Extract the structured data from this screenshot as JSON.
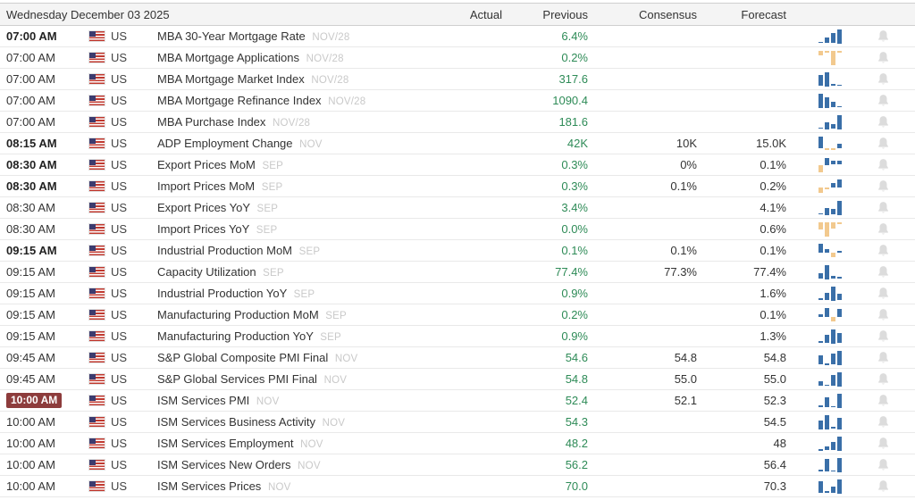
{
  "header": {
    "date": "Wednesday December 03 2025",
    "columns": {
      "actual": "Actual",
      "previous": "Previous",
      "consensus": "Consensus",
      "forecast": "Forecast"
    }
  },
  "colors": {
    "value_green": "#2e8b57",
    "spark_positive_blue": "#3a6fa8",
    "spark_negative_orange": "#f2c98e",
    "time_badge_red": "#8d3c3c",
    "header_bg": "#f4f4f4"
  },
  "icons": {
    "bell": "alert-bell-icon",
    "spark": "mini-bar-chart-icon",
    "flag": "us-flag-icon"
  },
  "rows": [
    {
      "time": "07:00 AM",
      "time_bold": true,
      "time_badge": false,
      "country": "US",
      "event": "MBA 30-Year Mortgage Rate",
      "period": "NOV/28",
      "actual": "",
      "previous": "6.4%",
      "consensus": "",
      "forecast": "",
      "spark": [
        0.12,
        0.4,
        0.7,
        1
      ]
    },
    {
      "time": "07:00 AM",
      "time_bold": false,
      "time_badge": false,
      "country": "US",
      "event": "MBA Mortgage Applications",
      "period": "NOV/28",
      "actual": "",
      "previous": "0.2%",
      "consensus": "",
      "forecast": "",
      "spark": [
        -0.35,
        -0.15,
        -1,
        -0.18
      ]
    },
    {
      "time": "07:00 AM",
      "time_bold": false,
      "time_badge": false,
      "country": "US",
      "event": "MBA Mortgage Market Index",
      "period": "NOV/28",
      "actual": "",
      "previous": "317.6",
      "consensus": "",
      "forecast": "",
      "spark": [
        0.8,
        1,
        0.15,
        0.1
      ]
    },
    {
      "time": "07:00 AM",
      "time_bold": false,
      "time_badge": false,
      "country": "US",
      "event": "MBA Mortgage Refinance Index",
      "period": "NOV/28",
      "actual": "",
      "previous": "1090.4",
      "consensus": "",
      "forecast": "",
      "spark": [
        1,
        0.75,
        0.4,
        0.12
      ]
    },
    {
      "time": "07:00 AM",
      "time_bold": false,
      "time_badge": false,
      "country": "US",
      "event": "MBA Purchase Index",
      "period": "NOV/28",
      "actual": "",
      "previous": "181.6",
      "consensus": "",
      "forecast": "",
      "spark": [
        0.12,
        0.5,
        0.35,
        1
      ]
    },
    {
      "time": "08:15 AM",
      "time_bold": true,
      "time_badge": false,
      "country": "US",
      "event": "ADP Employment Change",
      "period": "NOV",
      "actual": "",
      "previous": "42K",
      "consensus": "10K",
      "forecast": "15.0K",
      "spark": [
        1,
        -0.18,
        -0.12,
        0.35
      ]
    },
    {
      "time": "08:30 AM",
      "time_bold": true,
      "time_badge": false,
      "country": "US",
      "event": "Export Prices MoM",
      "period": "SEP",
      "actual": "",
      "previous": "0.3%",
      "consensus": "0%",
      "forecast": "0.1%",
      "spark": [
        -0.5,
        0.5,
        0.28,
        0.28
      ]
    },
    {
      "time": "08:30 AM",
      "time_bold": true,
      "time_badge": false,
      "country": "US",
      "event": "Import Prices MoM",
      "period": "SEP",
      "actual": "",
      "previous": "0.3%",
      "consensus": "0.1%",
      "forecast": "0.2%",
      "spark": [
        -0.38,
        -0.12,
        0.3,
        0.55
      ]
    },
    {
      "time": "08:30 AM",
      "time_bold": false,
      "time_badge": false,
      "country": "US",
      "event": "Export Prices YoY",
      "period": "SEP",
      "actual": "",
      "previous": "3.4%",
      "consensus": "",
      "forecast": "4.1%",
      "spark": [
        0.12,
        0.5,
        0.42,
        1
      ]
    },
    {
      "time": "08:30 AM",
      "time_bold": false,
      "time_badge": false,
      "country": "US",
      "event": "Import Prices YoY",
      "period": "SEP",
      "actual": "",
      "previous": "0.0%",
      "consensus": "",
      "forecast": "0.6%",
      "spark": [
        -0.35,
        -0.65,
        -0.3,
        -0.12
      ]
    },
    {
      "time": "09:15 AM",
      "time_bold": true,
      "time_badge": false,
      "country": "US",
      "event": "Industrial Production MoM",
      "period": "SEP",
      "actual": "",
      "previous": "0.1%",
      "consensus": "0.1%",
      "forecast": "0.1%",
      "spark": [
        0.55,
        0.18,
        -0.3,
        0.12
      ]
    },
    {
      "time": "09:15 AM",
      "time_bold": false,
      "time_badge": false,
      "country": "US",
      "event": "Capacity Utilization",
      "period": "SEP",
      "actual": "",
      "previous": "77.4%",
      "consensus": "77.3%",
      "forecast": "77.4%",
      "spark": [
        0.4,
        1,
        0.22,
        0.18
      ]
    },
    {
      "time": "09:15 AM",
      "time_bold": false,
      "time_badge": false,
      "country": "US",
      "event": "Industrial Production YoY",
      "period": "SEP",
      "actual": "",
      "previous": "0.9%",
      "consensus": "",
      "forecast": "1.6%",
      "spark": [
        0.12,
        0.4,
        0.75,
        0.35
      ]
    },
    {
      "time": "09:15 AM",
      "time_bold": false,
      "time_badge": false,
      "country": "US",
      "event": "Manufacturing Production MoM",
      "period": "SEP",
      "actual": "",
      "previous": "0.2%",
      "consensus": "",
      "forecast": "0.1%",
      "spark": [
        0.18,
        0.6,
        -0.28,
        0.5
      ]
    },
    {
      "time": "09:15 AM",
      "time_bold": false,
      "time_badge": false,
      "country": "US",
      "event": "Manufacturing Production YoY",
      "period": "SEP",
      "actual": "",
      "previous": "0.9%",
      "consensus": "",
      "forecast": "1.3%",
      "spark": [
        0.15,
        0.5,
        0.85,
        0.6
      ]
    },
    {
      "time": "09:45 AM",
      "time_bold": false,
      "time_badge": false,
      "country": "US",
      "event": "S&P Global Composite PMI Final",
      "period": "NOV",
      "actual": "",
      "previous": "54.6",
      "consensus": "54.8",
      "forecast": "54.8",
      "spark": [
        0.6,
        0.08,
        0.75,
        0.95
      ]
    },
    {
      "time": "09:45 AM",
      "time_bold": false,
      "time_badge": false,
      "country": "US",
      "event": "S&P Global Services PMI Final",
      "period": "NOV",
      "actual": "",
      "previous": "54.8",
      "consensus": "55.0",
      "forecast": "55.0",
      "spark": [
        0.3,
        0.1,
        0.65,
        0.85
      ]
    },
    {
      "time": "10:00 AM",
      "time_bold": false,
      "time_badge": true,
      "country": "US",
      "event": "ISM Services PMI",
      "period": "NOV",
      "actual": "",
      "previous": "52.4",
      "consensus": "52.1",
      "forecast": "52.3",
      "spark": [
        0.12,
        0.6,
        0.1,
        0.85
      ]
    },
    {
      "time": "10:00 AM",
      "time_bold": false,
      "time_badge": false,
      "country": "US",
      "event": "ISM Services Business Activity",
      "period": "NOV",
      "actual": "",
      "previous": "54.3",
      "consensus": "",
      "forecast": "54.5",
      "spark": [
        0.5,
        0.8,
        0.12,
        0.65
      ]
    },
    {
      "time": "10:00 AM",
      "time_bold": false,
      "time_badge": false,
      "country": "US",
      "event": "ISM Services Employment",
      "period": "NOV",
      "actual": "",
      "previous": "48.2",
      "consensus": "",
      "forecast": "48",
      "spark": [
        0.06,
        0.18,
        0.4,
        0.65
      ]
    },
    {
      "time": "10:00 AM",
      "time_bold": false,
      "time_badge": false,
      "country": "US",
      "event": "ISM Services New Orders",
      "period": "NOV",
      "actual": "",
      "previous": "56.2",
      "consensus": "",
      "forecast": "56.4",
      "spark": [
        0.12,
        0.7,
        0.08,
        0.75
      ]
    },
    {
      "time": "10:00 AM",
      "time_bold": false,
      "time_badge": false,
      "country": "US",
      "event": "ISM Services Prices",
      "period": "NOV",
      "actual": "",
      "previous": "70.0",
      "consensus": "",
      "forecast": "70.3",
      "spark": [
        0.65,
        0.12,
        0.35,
        0.75
      ]
    }
  ]
}
